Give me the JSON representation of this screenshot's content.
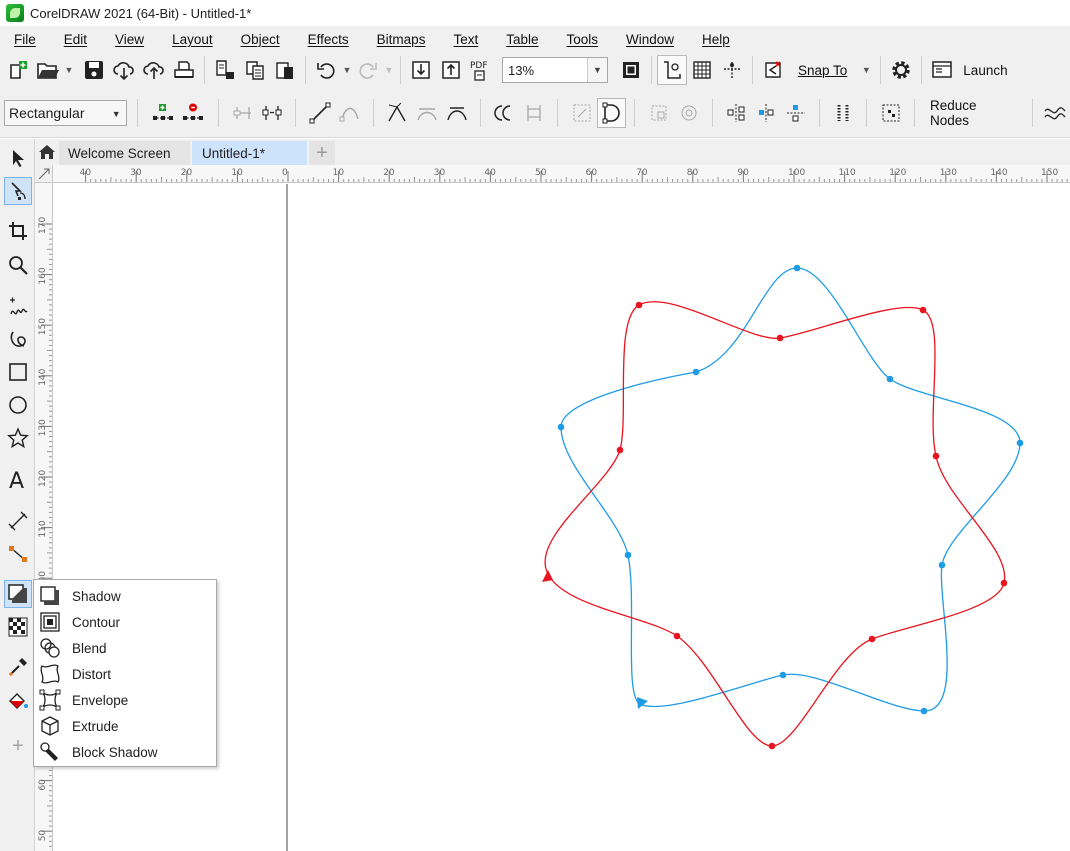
{
  "window": {
    "title": "CorelDRAW 2021 (64-Bit) - Untitled-1*"
  },
  "menu": [
    "File",
    "Edit",
    "View",
    "Layout",
    "Object",
    "Effects",
    "Bitmaps",
    "Text",
    "Table",
    "Tools",
    "Window",
    "Help"
  ],
  "toolbar": {
    "zoom_value": "13%",
    "snap_to_label": "Snap To",
    "launch_label": "Launch",
    "pdf_label": "PDF"
  },
  "property_bar": {
    "selection_mode": "Rectangular",
    "reduce_nodes_label": "Reduce Nodes"
  },
  "doc_tabs": {
    "welcome": "Welcome Screen",
    "current": "Untitled-1*"
  },
  "rulers": {
    "horizontal": [
      "40",
      "30",
      "20",
      "10",
      "0",
      "10",
      "20",
      "30",
      "40",
      "50",
      "60",
      "70",
      "80",
      "90",
      "100",
      "110",
      "120",
      "130",
      "140",
      "150"
    ],
    "vertical": [
      "170",
      "160",
      "150",
      "140",
      "130",
      "120",
      "110",
      "100",
      "90",
      "80",
      "70",
      "60",
      "50"
    ]
  },
  "flyout": {
    "items": [
      {
        "label": "Shadow",
        "icon": "shadow-icon"
      },
      {
        "label": "Contour",
        "icon": "contour-icon"
      },
      {
        "label": "Blend",
        "icon": "blend-icon"
      },
      {
        "label": "Distort",
        "icon": "distort-icon"
      },
      {
        "label": "Envelope",
        "icon": "envelope-icon"
      },
      {
        "label": "Extrude",
        "icon": "extrude-icon"
      },
      {
        "label": "Block Shadow",
        "icon": "block-shadow-icon"
      }
    ]
  },
  "colors": {
    "accent": "#7eb4ea",
    "red_curve": "#e8141e",
    "blue_curve": "#1e9be6",
    "chrome": "#f0f0f0"
  }
}
